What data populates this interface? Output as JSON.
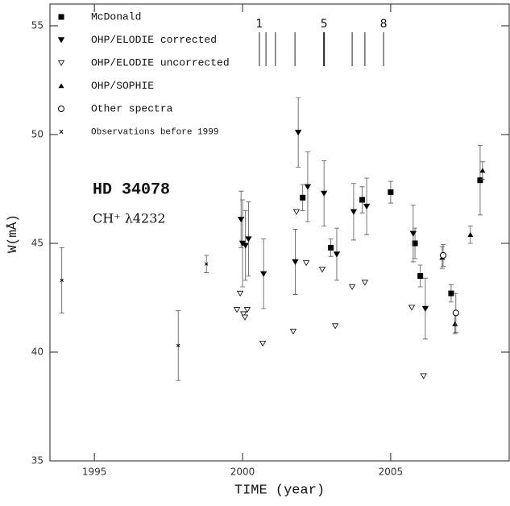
{
  "chart_data": {
    "type": "scatter",
    "xlabel": "TIME (year)",
    "ylabel": "W(mÅ)",
    "xlim": [
      1993.5,
      2009
    ],
    "ylim": [
      35,
      56
    ],
    "xticks": [
      1995,
      2000,
      2005
    ],
    "yticks": [
      35,
      40,
      45,
      50,
      55
    ],
    "annotations": [
      "HD 34078",
      "CH⁺ λ4232"
    ],
    "time_marks": [
      2000.57,
      2000.79,
      2001.11,
      2001.77,
      2002.75,
      2003.7,
      2004.13,
      2004.76
    ],
    "time_mark_labels": [
      {
        "x": 2000.57,
        "label": "1"
      },
      {
        "x": 2002.75,
        "label": "5"
      },
      {
        "x": 2004.76,
        "label": "8"
      }
    ],
    "series": [
      {
        "name": "McDonald",
        "marker": "square",
        "color": "#000000",
        "x": [
          2002.03,
          2002.98,
          2004.04,
          2005.0,
          2005.82,
          2006.0,
          2007.04,
          2008.02
        ],
        "values": [
          47.1,
          44.8,
          47.0,
          47.35,
          45.0,
          43.5,
          42.7,
          47.9
        ],
        "errors": [
          0.6,
          0.4,
          0.6,
          0.5,
          0.7,
          0.5,
          0.4,
          1.6
        ]
      },
      {
        "name": "OHP/ELODIE corrected",
        "marker": "tri-down-filled",
        "color": "#000000",
        "x": [
          1999.95,
          2000.0,
          2000.1,
          2000.2,
          2000.71,
          2001.88,
          2001.78,
          2002.2,
          2002.75,
          2003.18,
          2003.75,
          2004.19,
          2005.76,
          2006.17
        ],
        "values": [
          46.1,
          45.0,
          44.9,
          45.2,
          43.6,
          50.1,
          44.15,
          47.6,
          47.3,
          44.5,
          46.45,
          46.7,
          45.45,
          42.0
        ],
        "errors": [
          1.3,
          2.0,
          1.6,
          1.7,
          1.6,
          1.6,
          1.5,
          1.6,
          1.5,
          1.2,
          1.3,
          1.3,
          1.3,
          1.4
        ]
      },
      {
        "name": "OHP/ELODIE uncorrected",
        "marker": "tri-down-open",
        "color": "#000000",
        "x": [
          1999.81,
          1999.92,
          2000.03,
          2000.08,
          2000.16,
          2000.68,
          2001.82,
          2001.71,
          2002.15,
          2002.69,
          2003.13,
          2003.7,
          2004.13,
          2005.71,
          2006.11
        ],
        "values": [
          41.95,
          42.7,
          41.75,
          41.6,
          41.95,
          40.4,
          46.45,
          40.95,
          44.1,
          43.8,
          41.2,
          43.0,
          43.2,
          42.05,
          38.9
        ]
      },
      {
        "name": "OHP/SOPHIE",
        "marker": "tri-up-filled",
        "color": "#000000",
        "x": [
          2006.74,
          2007.17,
          2007.69,
          2008.1
        ],
        "values": [
          44.35,
          41.3,
          45.4,
          48.35
        ],
        "errors": [
          0.5,
          0.45,
          0.4,
          0.4
        ]
      },
      {
        "name": "Other spectra",
        "marker": "circle-open",
        "color": "#000000",
        "x": [
          2006.77,
          2007.2
        ],
        "values": [
          44.45,
          41.8
        ],
        "errors": [
          0.5,
          0.9
        ]
      },
      {
        "name": "Observations before 1999",
        "marker": "cross",
        "color": "#000000",
        "x": [
          1993.9,
          1997.83,
          1998.78
        ],
        "values": [
          43.3,
          40.3,
          44.05
        ],
        "errors": [
          1.5,
          1.6,
          0.4
        ]
      }
    ]
  }
}
